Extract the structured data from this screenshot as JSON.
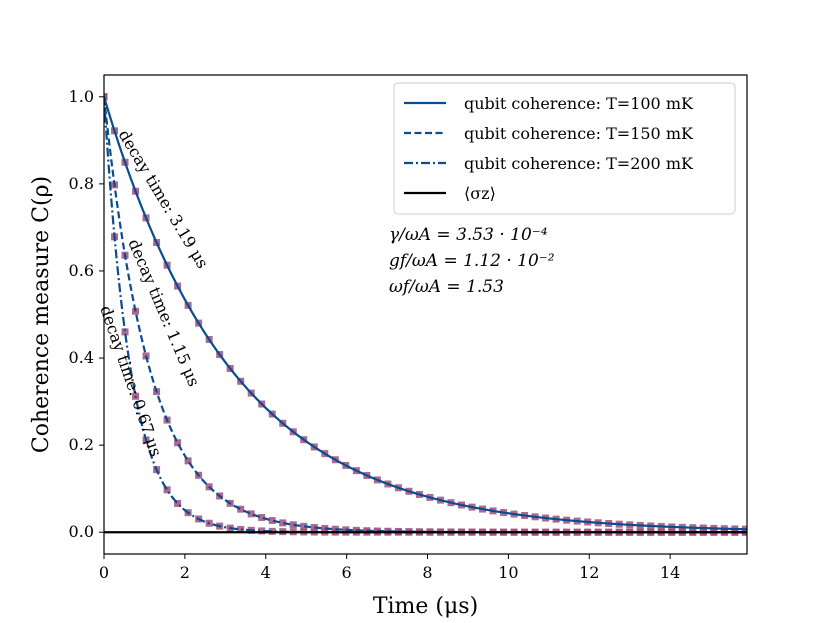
{
  "chart_data": {
    "type": "line",
    "xlabel": "Time (μs)",
    "ylabel": "Coherence measure C(ρ)",
    "xlim": [
      0,
      15.9
    ],
    "ylim": [
      -0.05,
      1.05
    ],
    "x_ticks": [
      0,
      2,
      4,
      6,
      8,
      10,
      12,
      14
    ],
    "y_ticks": [
      0.0,
      0.2,
      0.4,
      0.6,
      0.8,
      1.0
    ],
    "x_tick_labels": [
      "0",
      "2",
      "4",
      "6",
      "8",
      "10",
      "12",
      "14"
    ],
    "y_tick_labels": [
      "0.0",
      "0.2",
      "0.4",
      "0.6",
      "0.8",
      "1.0"
    ],
    "legend_position": "top-right",
    "series": [
      {
        "name": "qubit coherence: T=100 mK",
        "style": "solid",
        "color": "#0b4b8f",
        "decay_time": 3.19,
        "start": 1.0,
        "fit_marker_step": 0.26
      },
      {
        "name": "qubit coherence: T=150 mK",
        "style": "dashed",
        "color": "#0b4b8f",
        "decay_time": 1.15,
        "start": 1.0,
        "fit_marker_step": 0.26
      },
      {
        "name": "qubit coherence: T=200 mK",
        "style": "dashdot",
        "color": "#0b4b8f",
        "decay_time": 0.67,
        "start": 1.0,
        "fit_marker_step": 0.26
      },
      {
        "name": "⟨σz⟩",
        "style": "solid",
        "color": "#000000",
        "constant": 0.0
      }
    ],
    "fit_color": "#a0507a",
    "annotations": [
      {
        "text": "decay time: 3.19 μs",
        "series": 0
      },
      {
        "text": "decay time: 1.15 μs",
        "series": 1
      },
      {
        "text": "decay time: 0.67 μs",
        "series": 2
      }
    ],
    "parameters": [
      "γ/ωA = 3.53 · 10⁻⁴",
      "gf/ωA = 1.12 · 10⁻²",
      "ωf/ωA = 1.53"
    ]
  }
}
